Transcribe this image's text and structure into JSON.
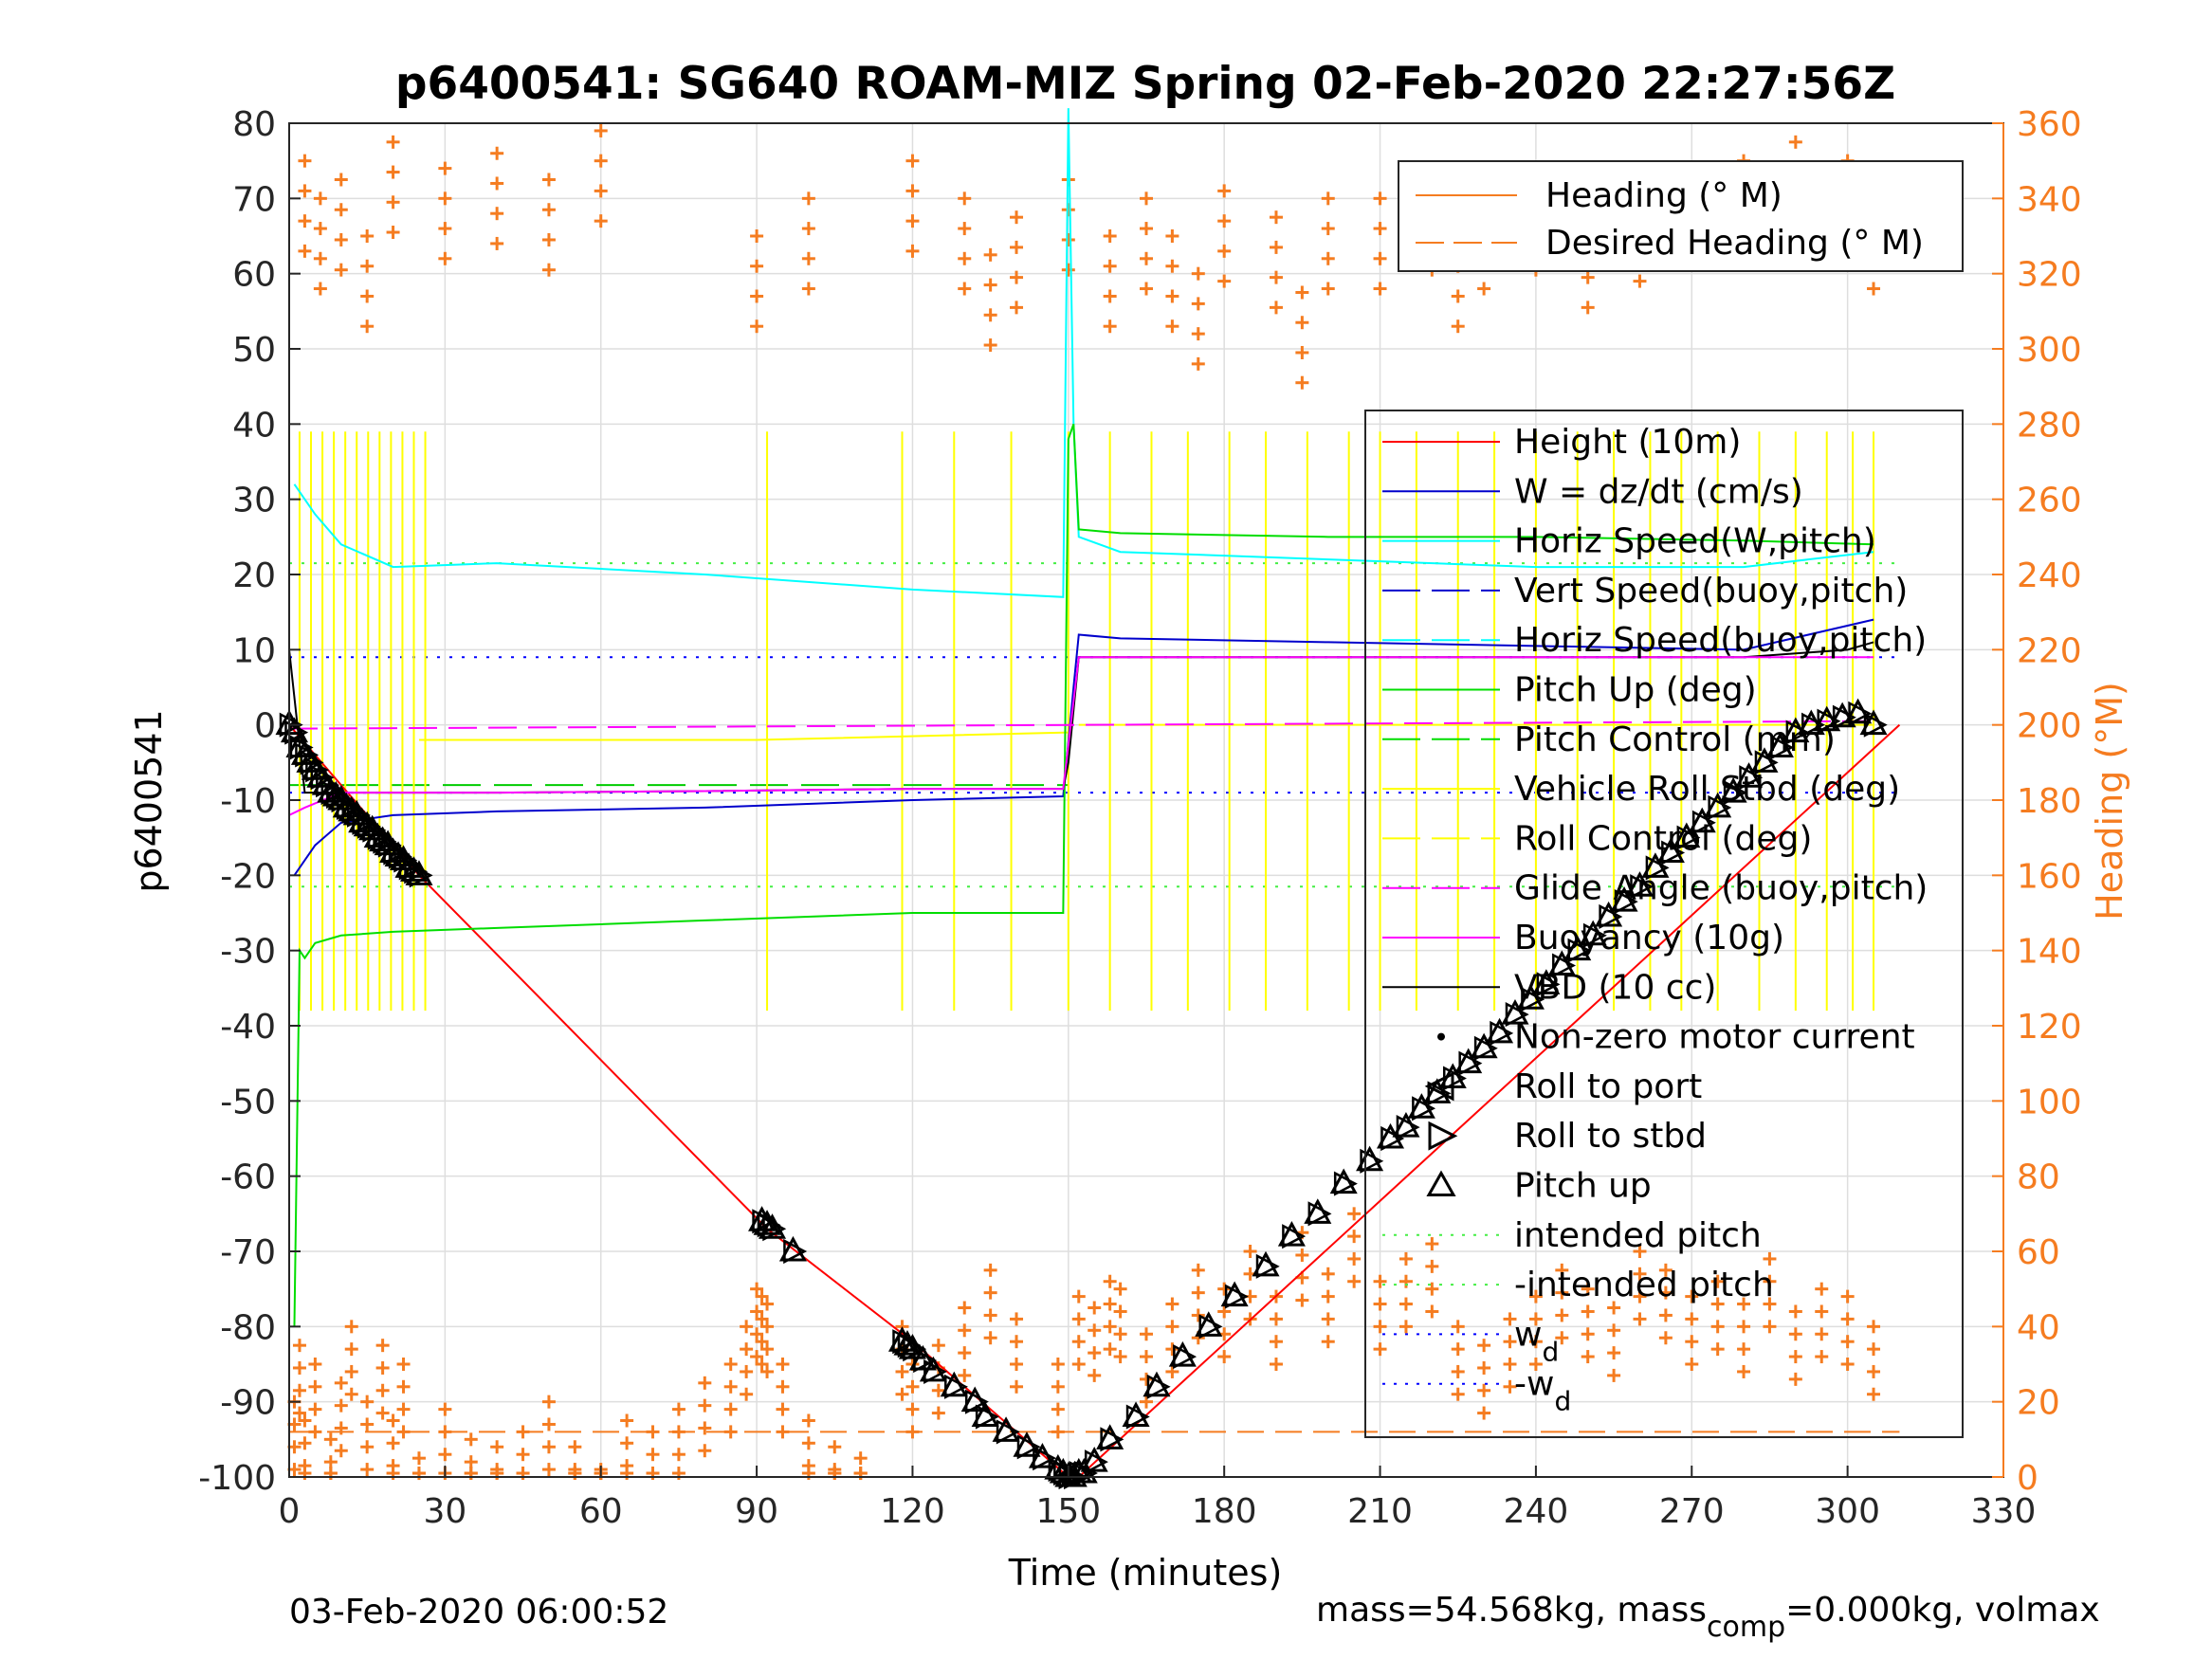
{
  "chart_data": {
    "type": "line",
    "title": "p6400541: SG640 ROAM-MIZ Spring 02-Feb-2020 22:27:56Z",
    "xlabel": "Time (minutes)",
    "ylabel": "p6400541",
    "y2label": "Heading (°M)",
    "xlim": [
      0,
      330
    ],
    "ylim": [
      -100,
      80
    ],
    "y2lim": [
      0,
      360
    ],
    "xticks": [
      "0",
      "30",
      "60",
      "90",
      "120",
      "150",
      "180",
      "210",
      "240",
      "270",
      "300",
      "330"
    ],
    "yticks": [
      "80",
      "70",
      "60",
      "50",
      "40",
      "30",
      "20",
      "10",
      "0",
      "-10",
      "-20",
      "-30",
      "-40",
      "-50",
      "-60",
      "-70",
      "-80",
      "-90",
      "-100"
    ],
    "y2ticks": [
      "360",
      "340",
      "320",
      "300",
      "280",
      "260",
      "240",
      "220",
      "200",
      "180",
      "160",
      "140",
      "120",
      "100",
      "80",
      "60",
      "40",
      "20",
      "0"
    ],
    "grid": true,
    "colors": {
      "height": "#ff0000",
      "w": "#0000cc",
      "horiz": "#00ffff",
      "pitch": "#00dd00",
      "roll": "#ffff00",
      "glide": "#ff00ff",
      "vbd": "#000000",
      "heading": "#f57c20",
      "wd": "#0000ff"
    },
    "heading_legend": {
      "placement": "top-right",
      "entries": [
        "Heading (° M)",
        "Desired Heading (° M)"
      ]
    },
    "legend": {
      "placement": "right",
      "entries": [
        "Height (10m)",
        "W = dz/dt (cm/s)",
        "Horiz Speed(W,pitch)",
        "Vert Speed(buoy,pitch)",
        "Horiz Speed(buoy,pitch)",
        "Pitch Up (deg)",
        "Pitch Control (mm)",
        "Vehicle Roll Stbd (deg)",
        "Roll Control (deg)",
        "Glide Angle (buoy,pitch)",
        "Buoyancy (10g)",
        "VBD (10 cc)",
        "Non-zero motor current",
        "Roll to port",
        "Roll to stbd",
        "Pitch up",
        "intended pitch",
        "-intended pitch",
        "w",
        "-w"
      ],
      "subscript": "d"
    },
    "series": [
      {
        "name": "Height (10m)",
        "x": [
          0,
          25,
          92,
          120,
          150,
          152,
          310
        ],
        "y": [
          0,
          -20,
          -67,
          -82,
          -100,
          -100,
          0
        ]
      },
      {
        "name": "W = dz/dt (cm/s)",
        "x": [
          1,
          5,
          10,
          20,
          40,
          80,
          120,
          149,
          151,
          152,
          160,
          200,
          240,
          280,
          305
        ],
        "y": [
          -20,
          -16,
          -13,
          -12,
          -11.5,
          -11,
          -10,
          -9.5,
          5,
          12,
          11.5,
          11,
          10.5,
          10,
          14
        ]
      },
      {
        "name": "Horiz Speed(W,pitch)",
        "x": [
          1,
          5,
          10,
          20,
          40,
          80,
          120,
          149,
          150,
          151,
          152,
          160,
          200,
          240,
          280,
          305
        ],
        "y": [
          32,
          28,
          24,
          21,
          21.5,
          20,
          18,
          17,
          82,
          40,
          25,
          23,
          22,
          21,
          21,
          23
        ]
      },
      {
        "name": "Pitch Up (deg)",
        "x": [
          1,
          2,
          3,
          5,
          10,
          20,
          40,
          80,
          120,
          149,
          150,
          151,
          152,
          160,
          200,
          240,
          280,
          305
        ],
        "y": [
          -80,
          -30,
          -31,
          -29,
          -28,
          -27.5,
          -27,
          -26,
          -25,
          -25,
          38,
          40,
          26,
          25.5,
          25,
          25,
          24.5,
          24
        ]
      },
      {
        "name": "VBD (10 cc)",
        "x": [
          0,
          3,
          10,
          40,
          80,
          120,
          149,
          150,
          152,
          160,
          200,
          240,
          280,
          300,
          305
        ],
        "y": [
          10,
          -9,
          -9,
          -9,
          -8.8,
          -8.5,
          -8.5,
          -5,
          9,
          9,
          9,
          9,
          9,
          10,
          11
        ]
      },
      {
        "name": "Glide Angle (buoy,pitch)",
        "x": [
          0,
          305
        ],
        "y": [
          -0.5,
          0.5
        ]
      },
      {
        "name": "Buoyancy (10g)",
        "x": [
          0,
          3,
          10,
          40,
          80,
          120,
          149,
          152,
          200,
          305
        ],
        "y": [
          -12,
          -11,
          -9,
          -9,
          -8.8,
          -8.5,
          -8.5,
          9,
          9,
          9
        ]
      }
    ],
    "pitch_up_markers": {
      "x": [
        0,
        1,
        2,
        3,
        4,
        5,
        6,
        7,
        8,
        9,
        10,
        11,
        12,
        13,
        14,
        15,
        16,
        17,
        18,
        19,
        20,
        21,
        22,
        23,
        24,
        25,
        91,
        92,
        93,
        97,
        118,
        119,
        120,
        122,
        124,
        128,
        132,
        134,
        138,
        142,
        145,
        148,
        149,
        150,
        151,
        152,
        153,
        155,
        158,
        163,
        167,
        172,
        177,
        182,
        188,
        193,
        198,
        203,
        208,
        212,
        215,
        218,
        221,
        224,
        227,
        230,
        233,
        236,
        239,
        242,
        245,
        248,
        251,
        254,
        257,
        260,
        263,
        266,
        269,
        272,
        275,
        278,
        281,
        284,
        287,
        290,
        293,
        296,
        299,
        302,
        305
      ],
      "y": [
        0,
        -1,
        -3,
        -4,
        -5,
        -6,
        -7,
        -8,
        -9,
        -9.5,
        -10,
        -11,
        -11.5,
        -12,
        -13,
        -13.5,
        -14,
        -15,
        -15.5,
        -16,
        -17,
        -17.5,
        -18,
        -19,
        -19.5,
        -20,
        -66,
        -66.5,
        -67,
        -70,
        -82,
        -82.5,
        -83,
        -84.5,
        -86,
        -88,
        -90,
        -92,
        -94,
        -96,
        -97.5,
        -99,
        -99.5,
        -100,
        -100,
        -99.5,
        -99.5,
        -98,
        -95,
        -92,
        -88,
        -84,
        -80,
        -76,
        -72,
        -68,
        -65,
        -61,
        -58,
        -55,
        -53.5,
        -51,
        -49,
        -47,
        -45,
        -43,
        -41,
        -38.5,
        -36.5,
        -34.5,
        -32,
        -30,
        -28,
        -25.5,
        -23.5,
        -21.5,
        -19,
        -17,
        -15,
        -13,
        -11,
        -9,
        -7,
        -5,
        -3,
        -1,
        0,
        0.5,
        1,
        1.5,
        0
      ]
    },
    "heading": {
      "x": [
        1,
        2,
        3,
        5,
        8,
        10,
        12,
        15,
        18,
        20,
        22,
        25,
        30,
        35,
        40,
        45,
        50,
        55,
        60,
        65,
        70,
        75,
        80,
        85,
        88,
        90,
        91,
        92,
        95,
        100,
        105,
        110,
        118,
        120,
        125,
        130,
        135,
        140,
        148,
        152,
        155,
        158,
        160,
        165,
        170,
        175,
        180,
        185,
        190,
        195,
        200,
        205,
        210,
        215,
        220,
        225,
        230,
        235,
        240,
        245,
        250,
        255,
        260,
        265,
        270,
        275,
        280,
        285,
        290,
        295,
        300,
        305
      ],
      "y": [
        20,
        35,
        15,
        30,
        10,
        25,
        40,
        20,
        35,
        15,
        30,
        5,
        18,
        10,
        8,
        12,
        20,
        8,
        2,
        15,
        12,
        18,
        25,
        30,
        40,
        50,
        48,
        46,
        30,
        15,
        8,
        5,
        40,
        30,
        35,
        45,
        55,
        42,
        30,
        48,
        45,
        52,
        50,
        38,
        46,
        55,
        50,
        60,
        48,
        65,
        54,
        70,
        52,
        58,
        62,
        40,
        35,
        42,
        48,
        55,
        50,
        45,
        60,
        55,
        48,
        52,
        46,
        58,
        44,
        50,
        48,
        40
      ]
    },
    "heading_top": {
      "x": [
        3,
        6,
        10,
        15,
        20,
        30,
        40,
        50,
        60,
        90,
        100,
        120,
        130,
        135,
        140,
        150,
        158,
        165,
        170,
        175,
        180,
        190,
        195,
        200,
        210,
        220,
        225,
        230,
        240,
        250,
        260,
        270,
        280,
        290,
        300,
        305
      ],
      "y": [
        350,
        340,
        345,
        330,
        355,
        348,
        352,
        345,
        358,
        330,
        340,
        350,
        340,
        325,
        335,
        345,
        330,
        340,
        330,
        320,
        342,
        335,
        315,
        340,
        340,
        345,
        330,
        340,
        345,
        335,
        342,
        348,
        350,
        355,
        350,
        340
      ]
    },
    "desired_heading": {
      "x": [
        0,
        310
      ],
      "y": [
        12,
        12
      ]
    },
    "reference_lines": {
      "intended_pitch": 21.5,
      "neg_intended_pitch": -21.5,
      "w_d": 9,
      "neg_w_d": -9
    },
    "footer_left": "03-Feb-2020 06:00:52",
    "footer_right_a": "mass=54.568kg, mass",
    "footer_right_sub": "comp",
    "footer_right_b": "=0.000kg, volmax"
  }
}
